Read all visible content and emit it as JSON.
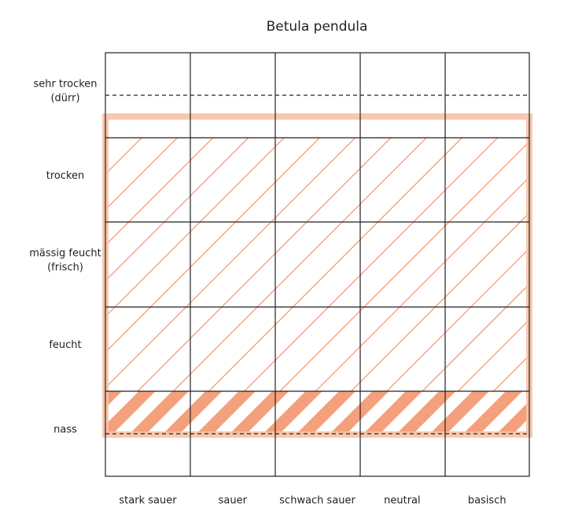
{
  "title": "Betula pendula",
  "rows": [
    [
      "sehr trocken",
      "(dürr)"
    ],
    [
      "trocken"
    ],
    [
      "mässig feucht",
      "(frisch)"
    ],
    [
      "feucht"
    ],
    [
      "nass"
    ]
  ],
  "columns": [
    "stark sauer",
    "sauer",
    "schwach sauer",
    "neutral",
    "basisch"
  ]
}
